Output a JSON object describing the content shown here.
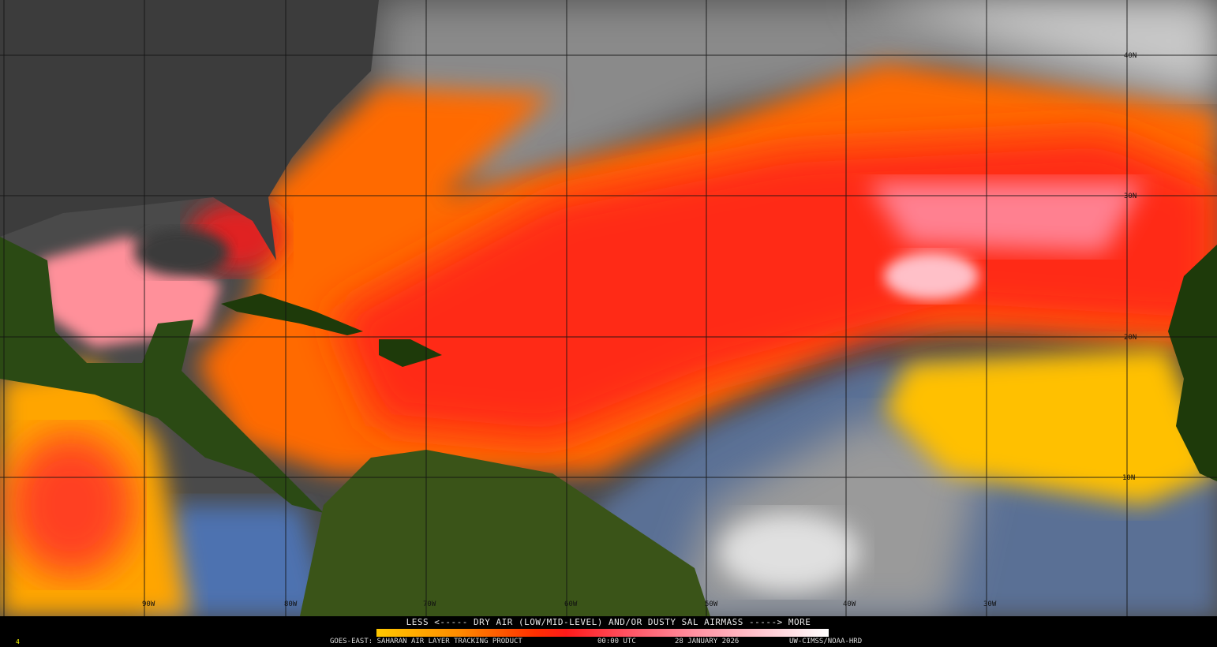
{
  "legend": {
    "title": "LESS <----- DRY AIR (LOW/MID-LEVEL) AND/OR DUSTY SAL AIRMASS -----> MORE",
    "colors": [
      "#ffc800",
      "#ff8c00",
      "#ff3000",
      "#ff1a1a",
      "#ff90a0",
      "#ffffff"
    ]
  },
  "caption": {
    "product": "GOES-EAST: SAHARAN AIR LAYER TRACKING PRODUCT",
    "time": "00:00 UTC",
    "date": "28 JANUARY 2026",
    "credit": "UW-CIMSS/NOAA-HRD",
    "corner_mark": "4"
  },
  "grid": {
    "latitudes": [
      "40N",
      "30N",
      "20N",
      "10N"
    ],
    "longitudes": [
      "90W",
      "80W",
      "70W",
      "60W",
      "50W",
      "40W",
      "30W"
    ]
  }
}
